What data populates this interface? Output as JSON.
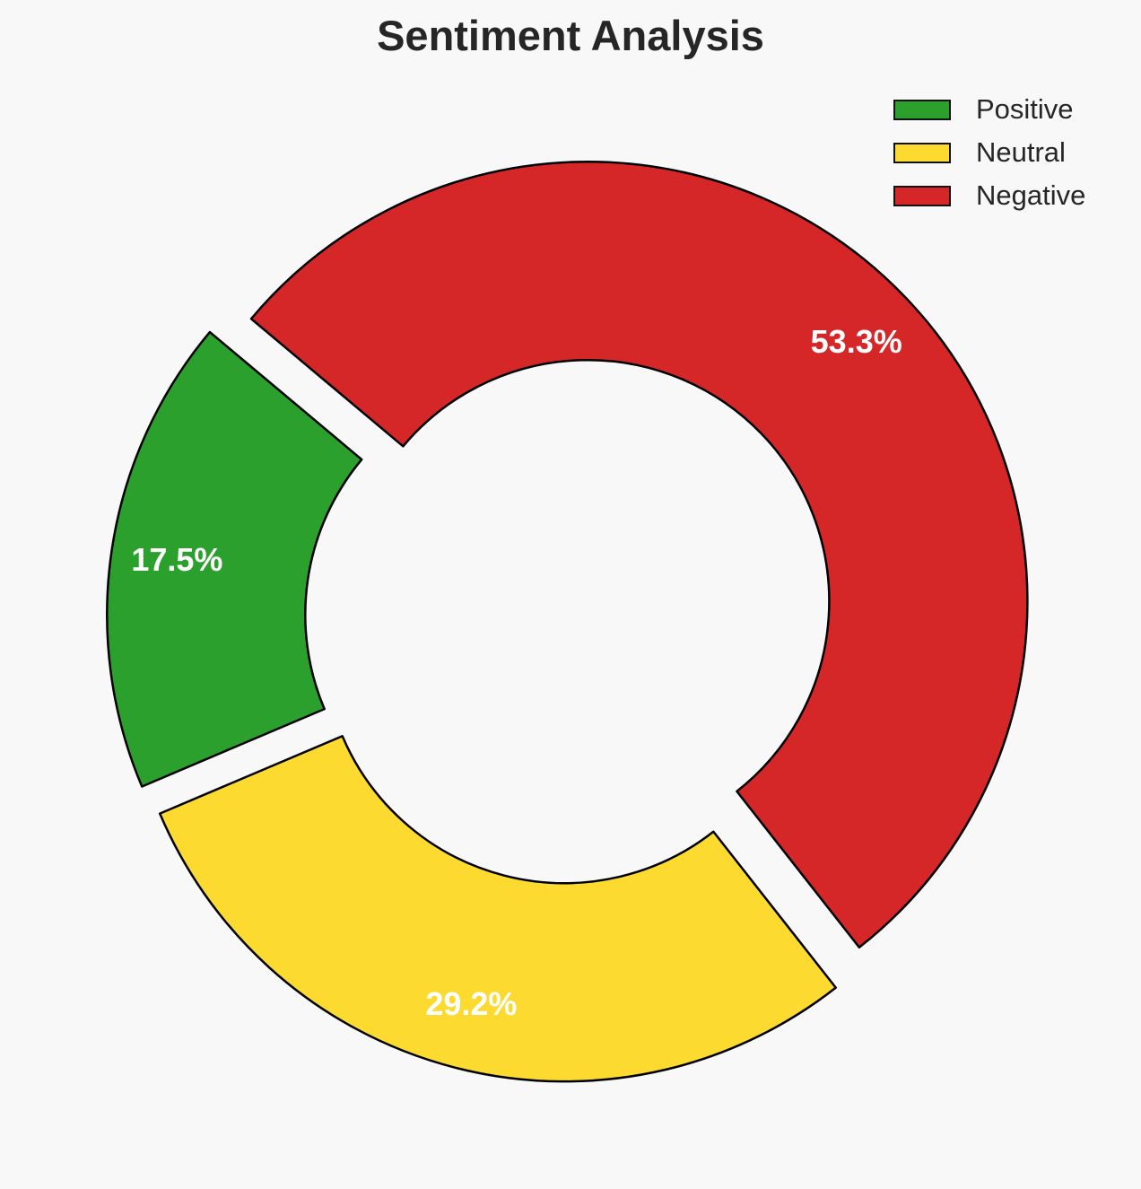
{
  "chart_data": {
    "type": "pie",
    "variant": "donut",
    "title": "Sentiment Analysis",
    "categories": [
      "Positive",
      "Neutral",
      "Negative"
    ],
    "values": [
      17.5,
      29.2,
      53.3
    ],
    "labels": [
      "17.5%",
      "29.2%",
      "53.3%"
    ],
    "colors": [
      "#2ca02c",
      "#fdda30",
      "#d62728"
    ],
    "start_angle_deg": 140,
    "direction": "counterclockwise",
    "exploded": true,
    "legend_placement": "top-right"
  }
}
